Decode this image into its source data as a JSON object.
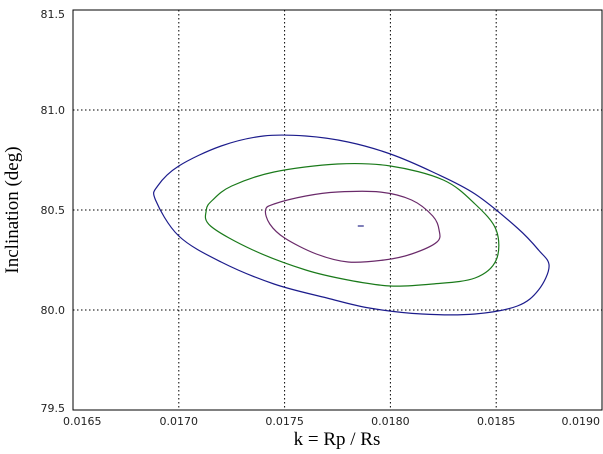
{
  "chart_data": {
    "type": "contour",
    "xlabel": "k = Rp / Rs",
    "ylabel": "Inclination (deg)",
    "xlim": [
      0.0165,
      0.019
    ],
    "ylim": [
      79.5,
      81.5
    ],
    "x_ticks": [
      0.0165,
      0.017,
      0.0175,
      0.018,
      0.0185,
      0.019
    ],
    "x_tick_labels": [
      "0.0165",
      "0.0170",
      "0.0175",
      "0.0180",
      "0.0185",
      "0.0190"
    ],
    "y_ticks": [
      79.5,
      80.0,
      80.5,
      81.0,
      81.5
    ],
    "y_tick_labels": [
      "79.5",
      "80.0",
      "80.5",
      "81.0",
      "81.5"
    ],
    "grid": true,
    "best_fit": {
      "x": 0.01786,
      "y": 80.42,
      "color": "#2a2a8a"
    },
    "contours": [
      {
        "color": "#1c1c8c",
        "points": [
          [
            0.01689,
            80.55
          ],
          [
            0.0169,
            80.62
          ],
          [
            0.017,
            80.72
          ],
          [
            0.0172,
            80.82
          ],
          [
            0.0174,
            80.87
          ],
          [
            0.0176,
            80.87
          ],
          [
            0.0178,
            80.84
          ],
          [
            0.018,
            80.78
          ],
          [
            0.0182,
            80.69
          ],
          [
            0.0184,
            80.58
          ],
          [
            0.0186,
            80.41
          ],
          [
            0.0187,
            80.3
          ],
          [
            0.01875,
            80.22
          ],
          [
            0.0187,
            80.1
          ],
          [
            0.0186,
            80.02
          ],
          [
            0.0184,
            79.98
          ],
          [
            0.01815,
            79.98
          ],
          [
            0.0179,
            80.01
          ],
          [
            0.0177,
            80.06
          ],
          [
            0.01745,
            80.13
          ],
          [
            0.0172,
            80.24
          ],
          [
            0.017,
            80.37
          ],
          [
            0.01689,
            80.55
          ]
        ]
      },
      {
        "color": "#1a7a1a",
        "points": [
          [
            0.01713,
            80.5
          ],
          [
            0.01716,
            80.55
          ],
          [
            0.01725,
            80.62
          ],
          [
            0.01745,
            80.69
          ],
          [
            0.01775,
            80.73
          ],
          [
            0.018,
            80.72
          ],
          [
            0.01825,
            80.65
          ],
          [
            0.0184,
            80.53
          ],
          [
            0.0185,
            80.4
          ],
          [
            0.0185,
            80.25
          ],
          [
            0.0184,
            80.16
          ],
          [
            0.0182,
            80.13
          ],
          [
            0.018,
            80.12
          ],
          [
            0.0178,
            80.15
          ],
          [
            0.0176,
            80.2
          ],
          [
            0.01735,
            80.3
          ],
          [
            0.01715,
            80.42
          ],
          [
            0.01713,
            80.5
          ]
        ]
      },
      {
        "color": "#6a2a6a",
        "points": [
          [
            0.01741,
            80.5
          ],
          [
            0.01745,
            80.53
          ],
          [
            0.0176,
            80.57
          ],
          [
            0.01775,
            80.59
          ],
          [
            0.01795,
            80.59
          ],
          [
            0.0181,
            80.55
          ],
          [
            0.0182,
            80.47
          ],
          [
            0.01823,
            80.4
          ],
          [
            0.01822,
            80.34
          ],
          [
            0.0181,
            80.28
          ],
          [
            0.01797,
            80.25
          ],
          [
            0.0178,
            80.24
          ],
          [
            0.01765,
            80.28
          ],
          [
            0.0175,
            80.36
          ],
          [
            0.01743,
            80.43
          ],
          [
            0.01741,
            80.5
          ]
        ]
      }
    ]
  }
}
